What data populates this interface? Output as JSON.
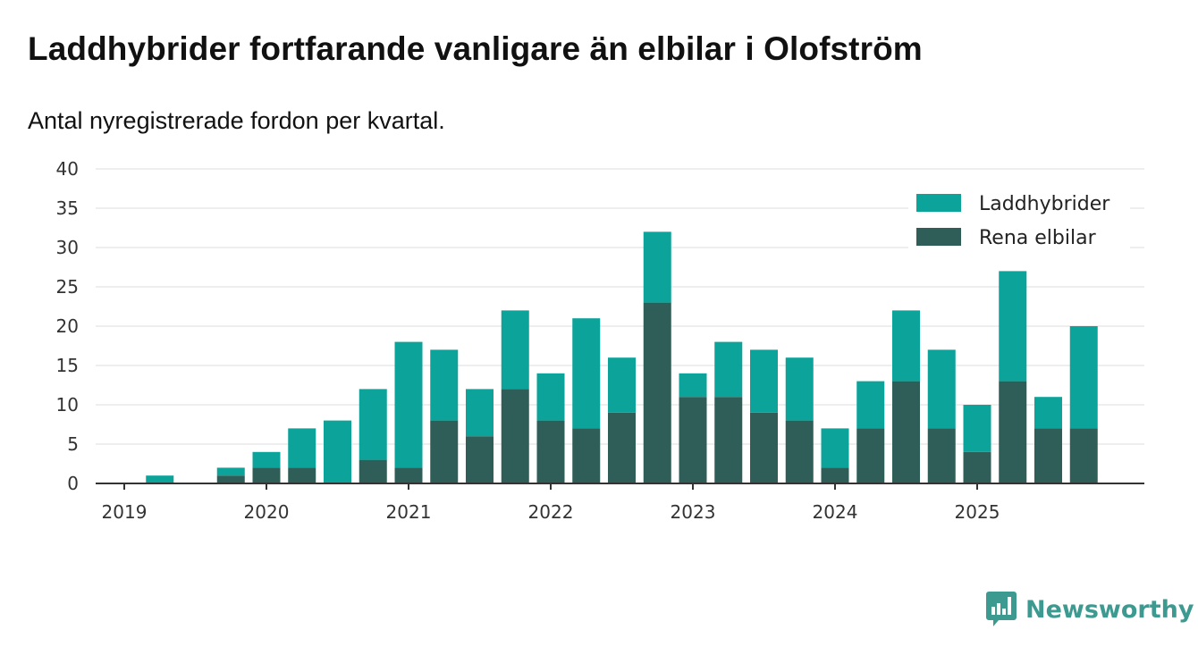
{
  "title": "Laddhybrider fortfarande vanligare än elbilar i Olofström",
  "subtitle": "Antal nyregistrerade fordon per kvartal.",
  "brand": {
    "name": "Newsworthy",
    "logo_icon": "bar-chart-speech-bubble-icon"
  },
  "colors": {
    "laddhybrider": "#0ba39a",
    "elbilar": "#2f5d57",
    "grid": "#dddddd",
    "axis": "#333333"
  },
  "chart_data": {
    "type": "bar",
    "stacked": true,
    "title": "Laddhybrider fortfarande vanligare än elbilar i Olofström",
    "subtitle": "Antal nyregistrerade fordon per kvartal.",
    "xlabel": "",
    "ylabel": "",
    "ylim": [
      0,
      40
    ],
    "yticks": [
      0,
      5,
      10,
      15,
      20,
      25,
      30,
      35,
      40
    ],
    "xtick_labels": [
      "2019",
      "2020",
      "2021",
      "2022",
      "2023",
      "2024",
      "2025"
    ],
    "legend_position": "top-right",
    "categories": [
      "2019 Q1",
      "2019 Q2",
      "2019 Q3",
      "2019 Q4",
      "2020 Q1",
      "2020 Q2",
      "2020 Q3",
      "2020 Q4",
      "2021 Q1",
      "2021 Q2",
      "2021 Q3",
      "2021 Q4",
      "2022 Q1",
      "2022 Q2",
      "2022 Q3",
      "2022 Q4",
      "2023 Q1",
      "2023 Q2",
      "2023 Q3",
      "2023 Q4",
      "2024 Q1",
      "2024 Q2",
      "2024 Q3",
      "2024 Q4",
      "2025 Q1",
      "2025 Q2",
      "2025 Q3",
      "2025 Q4"
    ],
    "series": [
      {
        "name": "Rena elbilar",
        "values": [
          0,
          0,
          0,
          1,
          2,
          2,
          0,
          3,
          2,
          8,
          6,
          12,
          8,
          7,
          9,
          23,
          11,
          11,
          9,
          8,
          2,
          7,
          13,
          7,
          4,
          13,
          7,
          7
        ]
      },
      {
        "name": "Laddhybrider",
        "values": [
          0,
          1,
          0,
          1,
          2,
          5,
          8,
          9,
          16,
          9,
          6,
          10,
          6,
          14,
          7,
          9,
          3,
          7,
          8,
          8,
          5,
          6,
          9,
          10,
          6,
          14,
          4,
          13
        ]
      }
    ]
  }
}
